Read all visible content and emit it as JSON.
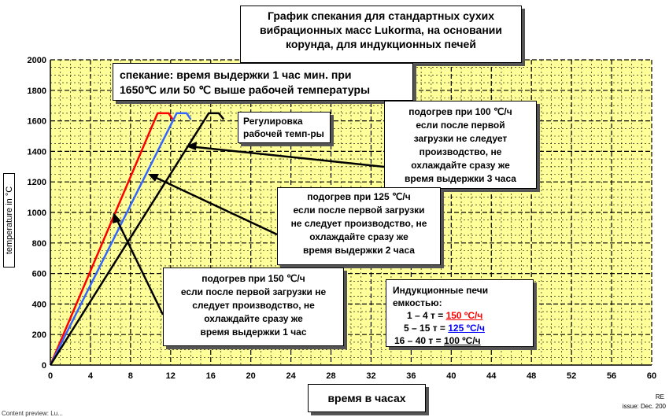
{
  "chart_data": {
    "type": "line",
    "title": "График спекания для стандартных сухих вибрационных масс Lukorma, на основании корунда, для индукционных печей",
    "xlabel": "время в часах",
    "ylabel": "temperature in °C",
    "xlim": [
      0,
      60
    ],
    "ylim": [
      0,
      2000
    ],
    "x_ticks": [
      0,
      4,
      8,
      12,
      16,
      20,
      24,
      28,
      32,
      36,
      40,
      44,
      48,
      52,
      56,
      60
    ],
    "y_ticks": [
      0,
      200,
      400,
      600,
      800,
      1000,
      1200,
      1400,
      1600,
      1800,
      2000
    ],
    "grid": true,
    "series": [
      {
        "name": "150 °C/ч",
        "color": "#ff0000",
        "x": [
          0,
          10.7,
          11.8,
          12.2
        ],
        "y": [
          0,
          1650,
          1650,
          1610
        ]
      },
      {
        "name": "125 °C/ч",
        "color": "#3366ff",
        "x": [
          0,
          12.6,
          13.6,
          14.0
        ],
        "y": [
          0,
          1650,
          1650,
          1610
        ]
      },
      {
        "name": "100 °C/ч",
        "color": "#000000",
        "x": [
          0,
          15.8,
          16.8,
          17.3
        ],
        "y": [
          0,
          1650,
          1650,
          1610
        ]
      }
    ]
  },
  "title_lines": [
    "График спекания для стандартных сухих",
    "вибрационных масс Lukorma, на основании",
    "корунда, для индукционных печей"
  ],
  "sintering_lines": [
    "спекание: время выдержки 1 час мин. при",
    "1650℃ или 50 ℃ выше рабочей температуры"
  ],
  "regulation_lines": [
    "Регулировка",
    "рабочей темп-ры"
  ],
  "heat100_lines": [
    "подогрев при 100 ℃/ч",
    "если после первой",
    "загрузки не следует",
    "производство, не",
    "охлаждайте сразу же",
    "время выдержки 3 часа"
  ],
  "heat125_lines": [
    "подогрев при 125 ℃/ч",
    "если после первой загрузки",
    "не следует производство, не",
    "охлаждайте сразу же",
    "время выдержки 2 часа"
  ],
  "heat150_lines": [
    "подогрев при 150 ℃/ч",
    "если после первой загрузки не",
    "следует производство, не",
    "охлаждайте сразу же",
    "время выдержки 1 час"
  ],
  "induction": {
    "title_lines": [
      "Индукционные печи",
      "емкостью:"
    ],
    "rows": [
      {
        "range": "1 – 4 т = ",
        "rate": "150 ºC/ч",
        "color": "#ff0000"
      },
      {
        "range": "5 – 15 т = ",
        "rate": "125 ºC/ч",
        "color": "#0000ff"
      },
      {
        "range": "16 – 40 т = ",
        "rate": "100 ºC/ч",
        "color": "#000000"
      }
    ]
  },
  "footer": {
    "right_code": "RE",
    "issue": "issue: Dec. 200",
    "left_text": "Content preview: Lu..."
  }
}
